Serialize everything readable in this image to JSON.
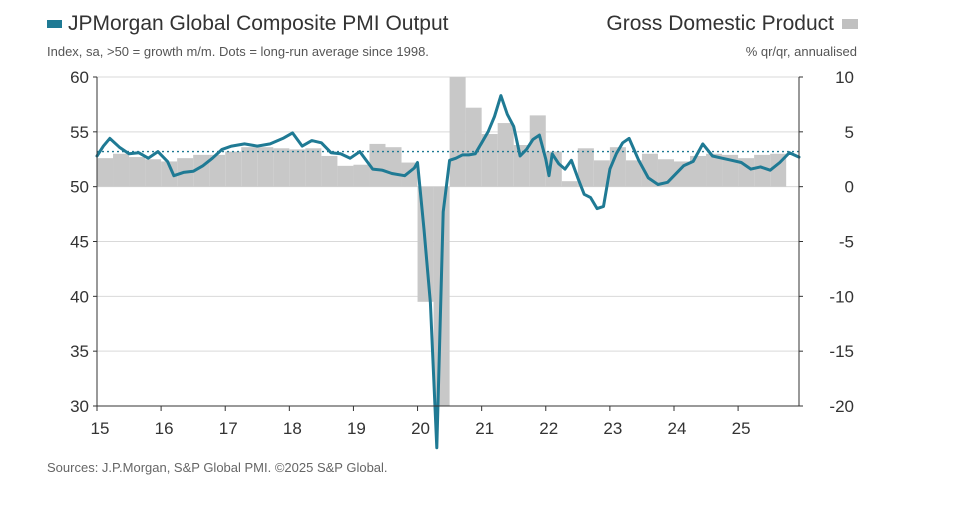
{
  "legend": {
    "pmi_label": "JPMorgan Global Composite PMI Output",
    "gdp_label": "Gross Domestic Product"
  },
  "subtitle": {
    "left": "Index, sa, >50 = growth m/m. Dots = long-run average since 1998.",
    "right": "% qr/qr, annualised"
  },
  "source": "Sources: J.P.Morgan, S&P Global PMI. ©2025 S&P Global.",
  "colors": {
    "pmi_line": "#1f7a94",
    "gdp_bar": "#c8c8c8",
    "average_dots": "#1f7a94",
    "gridline": "#d9d9d9"
  },
  "chart_data": {
    "type": "bar+line",
    "title": "JPMorgan Global Composite PMI Output vs Gross Domestic Product",
    "x_tick_labels": [
      "15",
      "16",
      "17",
      "18",
      "19",
      "20",
      "21",
      "22",
      "23",
      "24",
      "25"
    ],
    "x_range": [
      2015.0,
      2025.95
    ],
    "left_axis": {
      "label": "Index, sa, >50 = growth m/m",
      "ylim": [
        30,
        60
      ],
      "ticks": [
        "60",
        "55",
        "50",
        "45",
        "40",
        "35",
        "30"
      ]
    },
    "right_axis": {
      "label": "% qr/qr, annualised",
      "ylim": [
        -20,
        10
      ],
      "ticks": [
        "10",
        "5",
        "0",
        "-5",
        "-10",
        "-15",
        "-20"
      ]
    },
    "long_run_average": 53.2,
    "series": [
      {
        "name": "Gross Domestic Product",
        "axis": "right",
        "kind": "bar",
        "quarters": [
          "2015Q1",
          "2015Q2",
          "2015Q3",
          "2015Q4",
          "2016Q1",
          "2016Q2",
          "2016Q3",
          "2016Q4",
          "2017Q1",
          "2017Q2",
          "2017Q3",
          "2017Q4",
          "2018Q1",
          "2018Q2",
          "2018Q3",
          "2018Q4",
          "2019Q1",
          "2019Q2",
          "2019Q3",
          "2019Q4",
          "2020Q1",
          "2020Q2",
          "2020Q3",
          "2020Q4",
          "2021Q1",
          "2021Q2",
          "2021Q3",
          "2021Q4",
          "2022Q1",
          "2022Q2",
          "2022Q3",
          "2022Q4",
          "2023Q1",
          "2023Q2",
          "2023Q3",
          "2023Q4",
          "2024Q1",
          "2024Q2",
          "2024Q3",
          "2024Q4",
          "2025Q1",
          "2025Q2",
          "2025Q3"
        ],
        "values": [
          2.6,
          3.0,
          2.7,
          2.5,
          2.3,
          2.6,
          2.9,
          2.9,
          3.2,
          3.6,
          3.6,
          3.5,
          3.4,
          3.5,
          2.8,
          1.9,
          2.0,
          3.9,
          3.6,
          2.2,
          -10.5,
          -20.0,
          10.0,
          7.2,
          4.8,
          5.8,
          3.8,
          6.5,
          3.2,
          0.5,
          3.5,
          2.4,
          3.6,
          2.4,
          3.0,
          2.5,
          2.3,
          2.8,
          3.0,
          2.9,
          2.6,
          2.9,
          3.0
        ]
      },
      {
        "name": "JPMorgan Global Composite PMI Output",
        "axis": "left",
        "kind": "line",
        "x": [
          2015.0,
          2015.1,
          2015.2,
          2015.35,
          2015.5,
          2015.65,
          2015.8,
          2015.95,
          2016.1,
          2016.2,
          2016.35,
          2016.5,
          2016.65,
          2016.8,
          2016.95,
          2017.1,
          2017.3,
          2017.5,
          2017.7,
          2017.9,
          2018.05,
          2018.2,
          2018.35,
          2018.5,
          2018.65,
          2018.8,
          2018.95,
          2019.1,
          2019.3,
          2019.45,
          2019.6,
          2019.8,
          2019.95,
          2020.0,
          2020.1,
          2020.2,
          2020.3,
          2020.4,
          2020.5,
          2020.6,
          2020.7,
          2020.8,
          2020.9,
          2021.0,
          2021.1,
          2021.2,
          2021.3,
          2021.4,
          2021.5,
          2021.6,
          2021.7,
          2021.8,
          2021.9,
          2022.0,
          2022.05,
          2022.1,
          2022.2,
          2022.3,
          2022.4,
          2022.5,
          2022.6,
          2022.7,
          2022.8,
          2022.9,
          2023.0,
          2023.1,
          2023.2,
          2023.3,
          2023.45,
          2023.6,
          2023.75,
          2023.9,
          2024.0,
          2024.15,
          2024.3,
          2024.45,
          2024.6,
          2024.75,
          2024.9,
          2025.05,
          2025.2,
          2025.35,
          2025.5,
          2025.65,
          2025.8,
          2025.95
        ],
        "values": [
          52.8,
          53.7,
          54.4,
          53.6,
          53.0,
          53.1,
          52.6,
          53.2,
          52.3,
          51.0,
          51.3,
          51.4,
          51.9,
          52.6,
          53.4,
          53.7,
          53.9,
          53.7,
          53.9,
          54.4,
          54.9,
          53.7,
          54.2,
          54.0,
          53.1,
          53.0,
          52.6,
          53.2,
          51.6,
          51.5,
          51.2,
          51.0,
          51.7,
          52.2,
          46.1,
          39.4,
          26.2,
          47.7,
          52.4,
          52.6,
          52.9,
          52.9,
          53.0,
          54.0,
          55.0,
          56.4,
          58.3,
          56.6,
          55.5,
          52.8,
          53.4,
          54.3,
          54.7,
          52.5,
          51.0,
          53.0,
          52.1,
          51.6,
          52.4,
          50.8,
          49.3,
          49.0,
          48.0,
          48.2,
          51.6,
          53.0,
          54.0,
          54.4,
          52.4,
          50.8,
          50.2,
          50.4,
          51.0,
          51.9,
          52.3,
          53.9,
          52.8,
          52.6,
          52.4,
          52.2,
          51.6,
          51.8,
          51.5,
          52.2,
          53.1,
          52.7
        ]
      }
    ],
    "legend": [
      "JPMorgan Global Composite PMI Output",
      "Gross Domestic Product"
    ],
    "grid": "horizontal"
  }
}
